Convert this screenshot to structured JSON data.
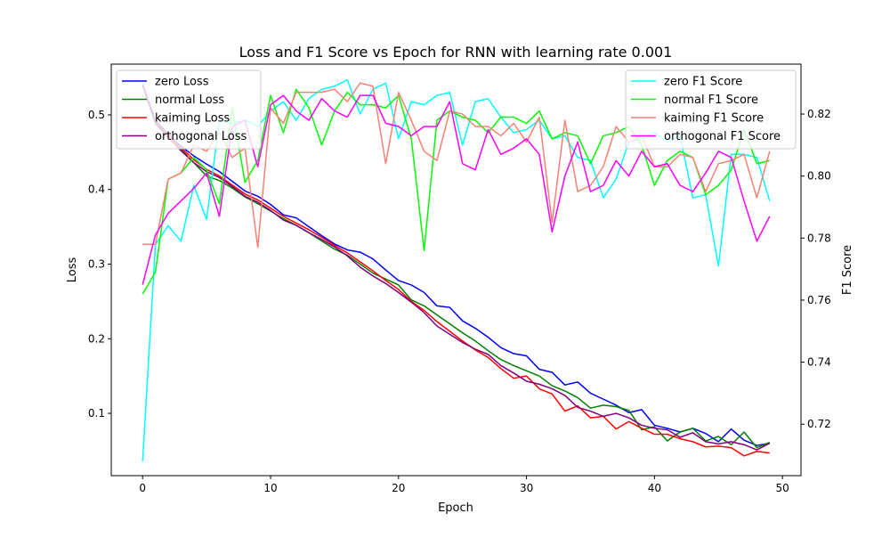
{
  "chart_data": {
    "type": "line",
    "title": "Loss and F1 Score vs Epoch for RNN with learning rate 0.001",
    "xlabel": "Epoch",
    "ylabel_left": "Loss",
    "ylabel_right": "F1 Score",
    "xlim": [
      -2.45,
      51.45
    ],
    "ylim_left": [
      0.0165,
      0.568
    ],
    "ylim_right": [
      0.7034,
      0.8361
    ],
    "x_ticks": [
      0,
      10,
      20,
      30,
      40,
      50
    ],
    "y_ticks_left": [
      0.1,
      0.2,
      0.3,
      0.4,
      0.5
    ],
    "y_ticks_right": [
      0.72,
      0.74,
      0.76,
      0.78,
      0.8,
      0.82
    ],
    "grid": false,
    "legend_left_placement": "upper-left",
    "legend_right_placement": "upper-right",
    "loss_series": [
      {
        "name": "zero Loss",
        "color": "#0000ff",
        "values": [
          0.541,
          0.493,
          0.474,
          0.458,
          0.445,
          0.434,
          0.424,
          0.411,
          0.398,
          0.391,
          0.38,
          0.366,
          0.362,
          0.35,
          0.338,
          0.327,
          0.319,
          0.316,
          0.307,
          0.292,
          0.278,
          0.272,
          0.262,
          0.244,
          0.242,
          0.224,
          0.214,
          0.202,
          0.188,
          0.18,
          0.177,
          0.159,
          0.155,
          0.138,
          0.142,
          0.127,
          0.119,
          0.111,
          0.101,
          0.105,
          0.084,
          0.08,
          0.075,
          0.08,
          0.073,
          0.062,
          0.079,
          0.064,
          0.057,
          0.06
        ]
      },
      {
        "name": "normal Loss",
        "color": "#008000",
        "values": [
          0.54,
          0.488,
          0.47,
          0.454,
          0.436,
          0.418,
          0.412,
          0.402,
          0.39,
          0.381,
          0.371,
          0.361,
          0.352,
          0.342,
          0.331,
          0.32,
          0.312,
          0.3,
          0.288,
          0.28,
          0.272,
          0.252,
          0.244,
          0.232,
          0.22,
          0.208,
          0.197,
          0.184,
          0.172,
          0.164,
          0.157,
          0.15,
          0.137,
          0.13,
          0.121,
          0.107,
          0.111,
          0.109,
          0.104,
          0.078,
          0.082,
          0.063,
          0.075,
          0.08,
          0.063,
          0.069,
          0.058,
          0.075,
          0.054,
          0.061
        ]
      },
      {
        "name": "kaiming Loss",
        "color": "#ff0000",
        "values": [
          0.541,
          0.491,
          0.473,
          0.456,
          0.44,
          0.427,
          0.418,
          0.406,
          0.394,
          0.386,
          0.375,
          0.364,
          0.355,
          0.346,
          0.336,
          0.325,
          0.315,
          0.303,
          0.291,
          0.278,
          0.266,
          0.25,
          0.238,
          0.223,
          0.21,
          0.197,
          0.185,
          0.175,
          0.16,
          0.147,
          0.15,
          0.133,
          0.126,
          0.103,
          0.11,
          0.094,
          0.096,
          0.079,
          0.089,
          0.08,
          0.072,
          0.072,
          0.066,
          0.062,
          0.055,
          0.056,
          0.054,
          0.043,
          0.049,
          0.047
        ]
      },
      {
        "name": "orthogonal Loss",
        "color": "#800080",
        "values": [
          0.541,
          0.49,
          0.47,
          0.452,
          0.436,
          0.424,
          0.416,
          0.404,
          0.391,
          0.383,
          0.372,
          0.359,
          0.352,
          0.342,
          0.333,
          0.323,
          0.311,
          0.296,
          0.284,
          0.274,
          0.262,
          0.249,
          0.235,
          0.217,
          0.206,
          0.195,
          0.186,
          0.179,
          0.164,
          0.154,
          0.143,
          0.139,
          0.133,
          0.124,
          0.108,
          0.103,
          0.096,
          0.1,
          0.094,
          0.084,
          0.08,
          0.078,
          0.068,
          0.074,
          0.062,
          0.059,
          0.062,
          0.058,
          0.051,
          0.06
        ]
      }
    ],
    "f1_series": [
      {
        "name": "zero F1 Score",
        "color": "#00ffff",
        "values": [
          0.708,
          0.778,
          0.784,
          0.779,
          0.797,
          0.786,
          0.818,
          0.817,
          0.818,
          0.816,
          0.821,
          0.824,
          0.818,
          0.825,
          0.828,
          0.829,
          0.831,
          0.82,
          0.828,
          0.83,
          0.812,
          0.824,
          0.823,
          0.826,
          0.827,
          0.81,
          0.824,
          0.825,
          0.819,
          0.814,
          0.815,
          0.818,
          0.812,
          0.813,
          0.806,
          0.805,
          0.793,
          0.799,
          0.811,
          0.812,
          0.814,
          0.811,
          0.813,
          0.793,
          0.794,
          0.771,
          0.807,
          0.807,
          0.806,
          0.792
        ]
      },
      {
        "name": "normal F1 Score",
        "color": "#00ff00",
        "values": [
          0.762,
          0.769,
          0.799,
          0.801,
          0.806,
          0.802,
          0.791,
          0.822,
          0.798,
          0.805,
          0.826,
          0.814,
          0.828,
          0.822,
          0.81,
          0.821,
          0.827,
          0.823,
          0.823,
          0.822,
          0.826,
          0.812,
          0.776,
          0.818,
          0.821,
          0.819,
          0.818,
          0.814,
          0.819,
          0.819,
          0.817,
          0.821,
          0.812,
          0.814,
          0.813,
          0.804,
          0.813,
          0.814,
          0.816,
          0.81,
          0.797,
          0.805,
          0.808,
          0.806,
          0.794,
          0.797,
          0.802,
          0.815,
          0.804,
          0.805
        ]
      },
      {
        "name": "kaiming F1 Score",
        "color": "#fa8072",
        "values": [
          0.778,
          0.778,
          0.799,
          0.801,
          0.81,
          0.808,
          0.814,
          0.806,
          0.809,
          0.777,
          0.822,
          0.817,
          0.827,
          0.827,
          0.827,
          0.828,
          0.824,
          0.83,
          0.829,
          0.804,
          0.827,
          0.818,
          0.808,
          0.805,
          0.821,
          0.82,
          0.816,
          0.816,
          0.813,
          0.817,
          0.811,
          0.819,
          0.785,
          0.818,
          0.795,
          0.797,
          0.803,
          0.816,
          0.811,
          0.813,
          0.803,
          0.803,
          0.807,
          0.806,
          0.795,
          0.804,
          0.805,
          0.807,
          0.793,
          0.808
        ]
      },
      {
        "name": "orthogonal F1 Score",
        "color": "#ff00ff",
        "values": [
          0.765,
          0.781,
          0.788,
          0.792,
          0.796,
          0.801,
          0.787,
          0.816,
          0.818,
          0.803,
          0.823,
          0.826,
          0.821,
          0.818,
          0.825,
          0.821,
          0.819,
          0.826,
          0.826,
          0.817,
          0.816,
          0.813,
          0.816,
          0.816,
          0.824,
          0.804,
          0.802,
          0.815,
          0.807,
          0.809,
          0.812,
          0.807,
          0.782,
          0.8,
          0.811,
          0.795,
          0.797,
          0.805,
          0.8,
          0.808,
          0.803,
          0.804,
          0.797,
          0.795,
          0.801,
          0.808,
          0.806,
          0.792,
          0.779,
          0.787
        ]
      }
    ]
  }
}
